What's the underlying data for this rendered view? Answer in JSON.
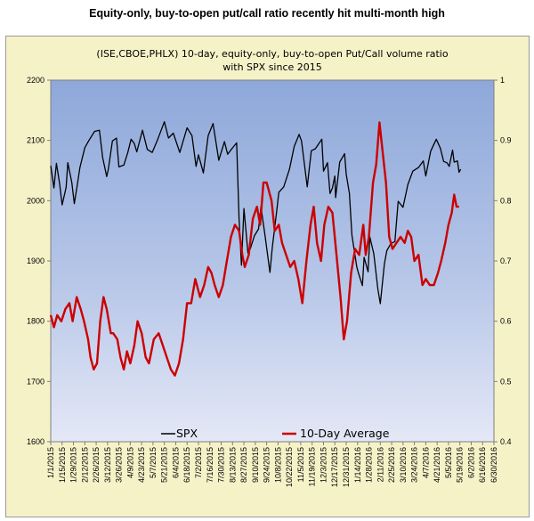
{
  "heading": "Equity-only, buy-to-open put/call ratio recently hit multi-month high",
  "chart_data": {
    "type": "line",
    "title_lines": [
      "(ISE,CBOE,PHLX) 10-day, equity-only, buy-to-open Put/Call volume ratio",
      "with SPX since 2015"
    ],
    "x_ticks": [
      "1/1/2015",
      "1/15/2015",
      "1/29/2015",
      "2/12/2015",
      "2/26/2015",
      "3/12/2015",
      "3/26/2015",
      "4/9/2015",
      "4/23/2015",
      "5/7/2015",
      "5/21/2015",
      "6/4/2015",
      "6/18/2015",
      "7/2/2015",
      "7/16/2015",
      "7/30/2015",
      "8/13/2015",
      "8/27/2015",
      "9/10/2015",
      "9/24/2015",
      "10/8/2015",
      "10/22/2015",
      "11/5/2015",
      "11/19/2015",
      "12/3/2015",
      "12/17/2015",
      "12/31/2015",
      "1/14/2016",
      "1/28/2016",
      "2/11/2016",
      "2/25/2016",
      "3/10/2016",
      "3/24/2016",
      "4/7/2016",
      "4/21/2016",
      "5/5/2016",
      "5/19/2016",
      "6/2/2016",
      "6/16/2016",
      "6/30/2016"
    ],
    "y_left": {
      "min": 1600,
      "max": 2200,
      "step": 100,
      "ticks": [
        "1600",
        "1700",
        "1800",
        "1900",
        "2000",
        "2100",
        "2200"
      ]
    },
    "y_right": {
      "min": 0.4,
      "max": 1.0,
      "step": 0.1,
      "ticks": [
        "0.4",
        "0.5",
        "0.6",
        "0.7",
        "0.8",
        "0.9",
        "1"
      ]
    },
    "series": [
      {
        "name": "SPX",
        "axis": "left",
        "color": "#000000",
        "points": [
          [
            "2015-01-01",
            2058
          ],
          [
            "2015-01-05",
            2021
          ],
          [
            "2015-01-08",
            2062
          ],
          [
            "2015-01-12",
            2028
          ],
          [
            "2015-01-15",
            1993
          ],
          [
            "2015-01-20",
            2022
          ],
          [
            "2015-01-22",
            2063
          ],
          [
            "2015-01-27",
            2030
          ],
          [
            "2015-01-30",
            1995
          ],
          [
            "2015-02-02",
            2020
          ],
          [
            "2015-02-06",
            2055
          ],
          [
            "2015-02-12",
            2088
          ],
          [
            "2015-02-17",
            2100
          ],
          [
            "2015-02-24",
            2115
          ],
          [
            "2015-03-02",
            2117
          ],
          [
            "2015-03-06",
            2071
          ],
          [
            "2015-03-11",
            2040
          ],
          [
            "2015-03-13",
            2053
          ],
          [
            "2015-03-18",
            2099
          ],
          [
            "2015-03-23",
            2104
          ],
          [
            "2015-03-26",
            2056
          ],
          [
            "2015-04-01",
            2059
          ],
          [
            "2015-04-06",
            2080
          ],
          [
            "2015-04-10",
            2102
          ],
          [
            "2015-04-14",
            2095
          ],
          [
            "2015-04-17",
            2081
          ],
          [
            "2015-04-24",
            2117
          ],
          [
            "2015-04-30",
            2085
          ],
          [
            "2015-05-06",
            2080
          ],
          [
            "2015-05-12",
            2099
          ],
          [
            "2015-05-21",
            2131
          ],
          [
            "2015-05-26",
            2104
          ],
          [
            "2015-06-01",
            2112
          ],
          [
            "2015-06-09",
            2080
          ],
          [
            "2015-06-12",
            2094
          ],
          [
            "2015-06-18",
            2121
          ],
          [
            "2015-06-24",
            2108
          ],
          [
            "2015-06-29",
            2057
          ],
          [
            "2015-07-02",
            2076
          ],
          [
            "2015-07-08",
            2046
          ],
          [
            "2015-07-14",
            2108
          ],
          [
            "2015-07-20",
            2128
          ],
          [
            "2015-07-27",
            2067
          ],
          [
            "2015-08-03",
            2098
          ],
          [
            "2015-08-07",
            2077
          ],
          [
            "2015-08-12",
            2086
          ],
          [
            "2015-08-18",
            2096
          ],
          [
            "2015-08-21",
            1970
          ],
          [
            "2015-08-24",
            1893
          ],
          [
            "2015-08-27",
            1987
          ],
          [
            "2015-09-01",
            1913
          ],
          [
            "2015-09-04",
            1921
          ],
          [
            "2015-09-09",
            1942
          ],
          [
            "2015-09-14",
            1953
          ],
          [
            "2015-09-17",
            1990
          ],
          [
            "2015-09-22",
            1942
          ],
          [
            "2015-09-28",
            1881
          ],
          [
            "2015-10-01",
            1923
          ],
          [
            "2015-10-06",
            1979
          ],
          [
            "2015-10-09",
            2014
          ],
          [
            "2015-10-15",
            2023
          ],
          [
            "2015-10-22",
            2052
          ],
          [
            "2015-10-28",
            2090
          ],
          [
            "2015-11-03",
            2110
          ],
          [
            "2015-11-06",
            2099
          ],
          [
            "2015-11-13",
            2023
          ],
          [
            "2015-11-18",
            2083
          ],
          [
            "2015-11-23",
            2086
          ],
          [
            "2015-12-01",
            2102
          ],
          [
            "2015-12-03",
            2049
          ],
          [
            "2015-12-08",
            2063
          ],
          [
            "2015-12-11",
            2012
          ],
          [
            "2015-12-14",
            2021
          ],
          [
            "2015-12-17",
            2041
          ],
          [
            "2015-12-18",
            2005
          ],
          [
            "2015-12-23",
            2064
          ],
          [
            "2015-12-29",
            2078
          ],
          [
            "2015-12-31",
            2044
          ],
          [
            "2016-01-04",
            2012
          ],
          [
            "2016-01-07",
            1943
          ],
          [
            "2016-01-13",
            1890
          ],
          [
            "2016-01-15",
            1880
          ],
          [
            "2016-01-20",
            1859
          ],
          [
            "2016-01-22",
            1906
          ],
          [
            "2016-01-27",
            1882
          ],
          [
            "2016-01-29",
            1940
          ],
          [
            "2016-02-03",
            1912
          ],
          [
            "2016-02-08",
            1853
          ],
          [
            "2016-02-11",
            1829
          ],
          [
            "2016-02-16",
            1895
          ],
          [
            "2016-02-19",
            1917
          ],
          [
            "2016-02-24",
            1929
          ],
          [
            "2016-02-29",
            1932
          ],
          [
            "2016-03-04",
            1999
          ],
          [
            "2016-03-10",
            1989
          ],
          [
            "2016-03-16",
            2027
          ],
          [
            "2016-03-22",
            2049
          ],
          [
            "2016-03-29",
            2055
          ],
          [
            "2016-04-04",
            2066
          ],
          [
            "2016-04-07",
            2041
          ],
          [
            "2016-04-13",
            2082
          ],
          [
            "2016-04-20",
            2102
          ],
          [
            "2016-04-25",
            2087
          ],
          [
            "2016-04-29",
            2065
          ],
          [
            "2016-05-03",
            2063
          ],
          [
            "2016-05-06",
            2057
          ],
          [
            "2016-05-10",
            2084
          ],
          [
            "2016-05-12",
            2064
          ],
          [
            "2016-05-16",
            2066
          ],
          [
            "2016-05-18",
            2047
          ],
          [
            "2016-05-20",
            2052
          ]
        ]
      },
      {
        "name": "10-Day Average",
        "axis": "right",
        "color": "#cc0000",
        "points": [
          [
            "2015-01-01",
            0.61
          ],
          [
            "2015-01-05",
            0.59
          ],
          [
            "2015-01-09",
            0.61
          ],
          [
            "2015-01-14",
            0.6
          ],
          [
            "2015-01-19",
            0.62
          ],
          [
            "2015-01-24",
            0.63
          ],
          [
            "2015-01-28",
            0.6
          ],
          [
            "2015-02-02",
            0.64
          ],
          [
            "2015-02-07",
            0.62
          ],
          [
            "2015-02-11",
            0.6
          ],
          [
            "2015-02-16",
            0.57
          ],
          [
            "2015-02-19",
            0.54
          ],
          [
            "2015-02-23",
            0.52
          ],
          [
            "2015-02-27",
            0.53
          ],
          [
            "2015-03-03",
            0.6
          ],
          [
            "2015-03-07",
            0.64
          ],
          [
            "2015-03-11",
            0.62
          ],
          [
            "2015-03-16",
            0.58
          ],
          [
            "2015-03-19",
            0.58
          ],
          [
            "2015-03-24",
            0.57
          ],
          [
            "2015-03-28",
            0.54
          ],
          [
            "2015-04-01",
            0.52
          ],
          [
            "2015-04-05",
            0.55
          ],
          [
            "2015-04-09",
            0.53
          ],
          [
            "2015-04-14",
            0.56
          ],
          [
            "2015-04-18",
            0.6
          ],
          [
            "2015-04-23",
            0.58
          ],
          [
            "2015-04-28",
            0.54
          ],
          [
            "2015-05-02",
            0.53
          ],
          [
            "2015-05-08",
            0.57
          ],
          [
            "2015-05-14",
            0.58
          ],
          [
            "2015-05-19",
            0.56
          ],
          [
            "2015-05-24",
            0.54
          ],
          [
            "2015-05-29",
            0.52
          ],
          [
            "2015-06-03",
            0.51
          ],
          [
            "2015-06-08",
            0.53
          ],
          [
            "2015-06-13",
            0.57
          ],
          [
            "2015-06-18",
            0.63
          ],
          [
            "2015-06-23",
            0.63
          ],
          [
            "2015-06-28",
            0.67
          ],
          [
            "2015-07-04",
            0.64
          ],
          [
            "2015-07-09",
            0.66
          ],
          [
            "2015-07-14",
            0.69
          ],
          [
            "2015-07-18",
            0.68
          ],
          [
            "2015-07-22",
            0.66
          ],
          [
            "2015-07-27",
            0.64
          ],
          [
            "2015-08-01",
            0.66
          ],
          [
            "2015-08-06",
            0.7
          ],
          [
            "2015-08-11",
            0.74
          ],
          [
            "2015-08-16",
            0.76
          ],
          [
            "2015-08-21",
            0.75
          ],
          [
            "2015-08-25",
            0.71
          ],
          [
            "2015-08-28",
            0.69
          ],
          [
            "2015-09-02",
            0.71
          ],
          [
            "2015-09-07",
            0.77
          ],
          [
            "2015-09-12",
            0.79
          ],
          [
            "2015-09-16",
            0.76
          ],
          [
            "2015-09-20",
            0.83
          ],
          [
            "2015-09-24",
            0.83
          ],
          [
            "2015-09-30",
            0.8
          ],
          [
            "2015-10-04",
            0.75
          ],
          [
            "2015-10-09",
            0.76
          ],
          [
            "2015-10-13",
            0.73
          ],
          [
            "2015-10-18",
            0.71
          ],
          [
            "2015-10-23",
            0.69
          ],
          [
            "2015-10-28",
            0.7
          ],
          [
            "2015-11-02",
            0.67
          ],
          [
            "2015-11-07",
            0.63
          ],
          [
            "2015-11-12",
            0.7
          ],
          [
            "2015-11-17",
            0.76
          ],
          [
            "2015-11-21",
            0.79
          ],
          [
            "2015-11-25",
            0.73
          ],
          [
            "2015-11-30",
            0.7
          ],
          [
            "2015-12-04",
            0.76
          ],
          [
            "2015-12-09",
            0.79
          ],
          [
            "2015-12-14",
            0.78
          ],
          [
            "2015-12-19",
            0.71
          ],
          [
            "2015-12-24",
            0.64
          ],
          [
            "2015-12-28",
            0.57
          ],
          [
            "2016-01-01",
            0.6
          ],
          [
            "2016-01-06",
            0.68
          ],
          [
            "2016-01-11",
            0.72
          ],
          [
            "2016-01-16",
            0.71
          ],
          [
            "2016-01-21",
            0.76
          ],
          [
            "2016-01-24",
            0.71
          ],
          [
            "2016-01-28",
            0.74
          ],
          [
            "2016-02-02",
            0.83
          ],
          [
            "2016-02-06",
            0.86
          ],
          [
            "2016-02-10",
            0.93
          ],
          [
            "2016-02-14",
            0.88
          ],
          [
            "2016-02-18",
            0.83
          ],
          [
            "2016-02-22",
            0.74
          ],
          [
            "2016-02-26",
            0.72
          ],
          [
            "2016-03-02",
            0.73
          ],
          [
            "2016-03-07",
            0.74
          ],
          [
            "2016-03-12",
            0.73
          ],
          [
            "2016-03-16",
            0.75
          ],
          [
            "2016-03-20",
            0.74
          ],
          [
            "2016-03-24",
            0.7
          ],
          [
            "2016-03-29",
            0.71
          ],
          [
            "2016-04-03",
            0.66
          ],
          [
            "2016-04-07",
            0.67
          ],
          [
            "2016-04-12",
            0.66
          ],
          [
            "2016-04-17",
            0.66
          ],
          [
            "2016-04-22",
            0.68
          ],
          [
            "2016-04-26",
            0.7
          ],
          [
            "2016-05-01",
            0.73
          ],
          [
            "2016-05-05",
            0.76
          ],
          [
            "2016-05-09",
            0.78
          ],
          [
            "2016-05-12",
            0.81
          ],
          [
            "2016-05-15",
            0.79
          ],
          [
            "2016-05-18",
            0.79
          ]
        ]
      }
    ],
    "legend": {
      "position": "bottom",
      "items": [
        "SPX",
        "10-Day Average"
      ]
    },
    "plot_background": "gradient #8ea8da to #dfe4f4",
    "grid": false
  }
}
